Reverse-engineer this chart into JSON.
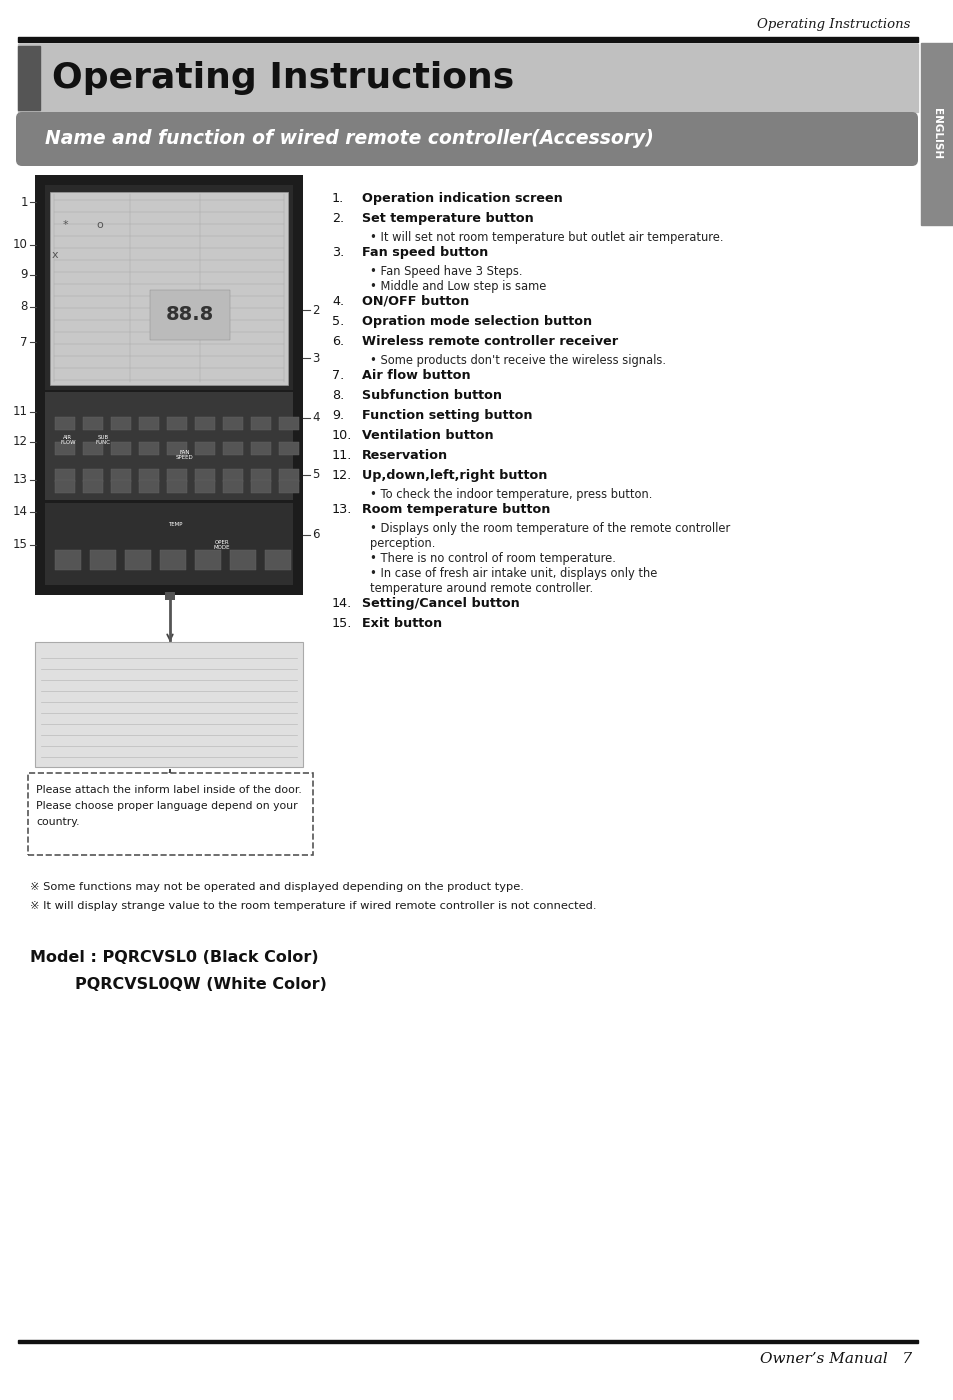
{
  "page_title_italic": "Operating Instructions",
  "main_title": "Operating Instructions",
  "section_title": "Name and function of wired remote controller(Accessory)",
  "bg_color": "#ffffff",
  "footer_text": "Owner’s Manual   7",
  "numbered_items": [
    {
      "num": "1.",
      "bold": "Operation indication screen",
      "sub": []
    },
    {
      "num": "2.",
      "bold": "Set temperature button",
      "sub": [
        "• It will set not room temperature but outlet air temperature."
      ]
    },
    {
      "num": "3.",
      "bold": "Fan speed button",
      "sub": [
        "• Fan Speed have 3 Steps.",
        "• Middle and Low step is same"
      ]
    },
    {
      "num": "4.",
      "bold": "ON/OFF button",
      "sub": []
    },
    {
      "num": "5.",
      "bold": "Opration mode selection button",
      "sub": []
    },
    {
      "num": "6.",
      "bold": "Wireless remote controller receiver",
      "sub": [
        "• Some products don't receive the wireless signals."
      ]
    },
    {
      "num": "7.",
      "bold": "Air flow button",
      "sub": []
    },
    {
      "num": "8.",
      "bold": "Subfunction button",
      "sub": []
    },
    {
      "num": "9.",
      "bold": "Function setting button",
      "sub": []
    },
    {
      "num": "10.",
      "bold": "Ventilation button",
      "sub": []
    },
    {
      "num": "11.",
      "bold": "Reservation",
      "sub": []
    },
    {
      "num": "12.",
      "bold": "Up,down,left,right button",
      "sub": [
        "• To check the indoor temperature, press       button."
      ]
    },
    {
      "num": "13.",
      "bold": "Room temperature button",
      "sub": [
        "• Displays only the room temperature of the remote controller perception.",
        "• There is no control of room temperature.",
        "• In case of  fresh air intake unit, displays only the temperature around remote controller."
      ]
    },
    {
      "num": "14.",
      "bold": "Setting/Cancel button",
      "sub": []
    },
    {
      "num": "15.",
      "bold": "Exit button",
      "sub": []
    }
  ],
  "footnote1": "※ Some functions may not be operated and displayed depending on the product type.",
  "footnote2": "※ It will display strange value to the room temperature if wired remote controller is not connected.",
  "model_line1": "Model : PQRCVSL0 (Black Color)",
  "model_line2": "        PQRCVSL0QW (White Color)",
  "label_box_lines": [
    "Please attach the inform label inside of the door.",
    "Please choose proper language depend on your",
    "country."
  ]
}
